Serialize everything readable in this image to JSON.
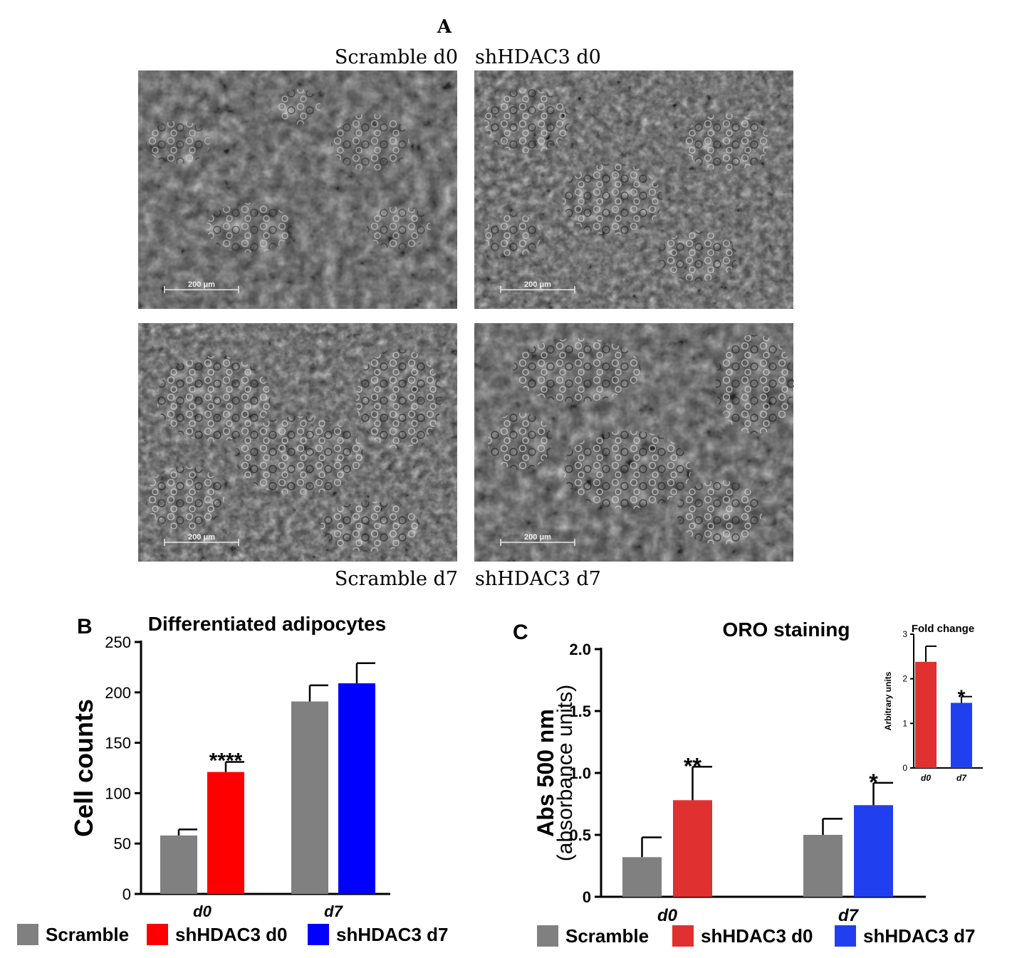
{
  "panel_a": {
    "letter": "A",
    "labels": {
      "top_left": "Scramble d0",
      "top_right": "shHDAC3 d0",
      "bottom_left": "Scramble d7",
      "bottom_right": "shHDAC3 d7"
    },
    "scale_bar": "200 μm"
  },
  "colors": {
    "scramble": "#808080",
    "shhdac3_d0_b": "#ff0000",
    "shhdac3_d7_b": "#0000ff",
    "shhdac3_d0_c": "#e03030",
    "shhdac3_d7_c": "#2040f0"
  },
  "chart_data": [
    {
      "id": "B",
      "letter": "B",
      "type": "bar",
      "title": "Differentiated adipocytes",
      "ylabel": "Cell counts",
      "categories": [
        "d0",
        "d7"
      ],
      "ylim": [
        0,
        250
      ],
      "yticks": [
        "0",
        "50",
        "100",
        "150",
        "200",
        "250"
      ],
      "series": [
        {
          "name": "Scramble",
          "values": [
            58,
            191
          ],
          "errors": [
            6,
            16
          ]
        },
        {
          "name": "shHDAC3 d0",
          "values": [
            121,
            null
          ],
          "errors": [
            10,
            null
          ]
        },
        {
          "name": "shHDAC3 d7",
          "values": [
            null,
            209
          ],
          "errors": [
            null,
            20
          ]
        }
      ],
      "annotations": [
        {
          "text": "****",
          "category": "d0",
          "series": "shHDAC3 d0"
        }
      ],
      "legend": [
        "Scramble",
        "shHDAC3 d0",
        "shHDAC3 d7"
      ]
    },
    {
      "id": "C",
      "letter": "C",
      "type": "bar",
      "title": "ORO staining",
      "ylabel": "Abs 500 nm",
      "ylabel2": "(absorbance units)",
      "categories": [
        "d0",
        "d7"
      ],
      "ylim": [
        0,
        2.0
      ],
      "yticks": [
        "0",
        "0.5",
        "1.0",
        "1.5",
        "2.0"
      ],
      "series": [
        {
          "name": "Scramble",
          "values": [
            0.32,
            0.5
          ],
          "errors": [
            0.16,
            0.13
          ]
        },
        {
          "name": "shHDAC3 d0",
          "values": [
            0.78,
            null
          ],
          "errors": [
            0.27,
            null
          ]
        },
        {
          "name": "shHDAC3 d7",
          "values": [
            null,
            0.74
          ],
          "errors": [
            null,
            0.18
          ]
        }
      ],
      "annotations": [
        {
          "text": "**",
          "category": "d0",
          "series": "shHDAC3 d0"
        },
        {
          "text": "*",
          "category": "d7",
          "series": "shHDAC3 d7"
        }
      ],
      "legend": [
        "Scramble",
        "shHDAC3 d0",
        "shHDAC3 d7"
      ],
      "inset": {
        "type": "bar",
        "title": "Fold change",
        "ylabel": "Arbitrary units",
        "categories": [
          "d0",
          "d7"
        ],
        "ylim": [
          0,
          3
        ],
        "yticks": [
          "0",
          "1",
          "2",
          "3"
        ],
        "values": [
          2.38,
          1.46
        ],
        "errors": [
          0.35,
          0.14
        ],
        "annotations": [
          {
            "text": "*",
            "category": "d7"
          }
        ]
      }
    }
  ]
}
